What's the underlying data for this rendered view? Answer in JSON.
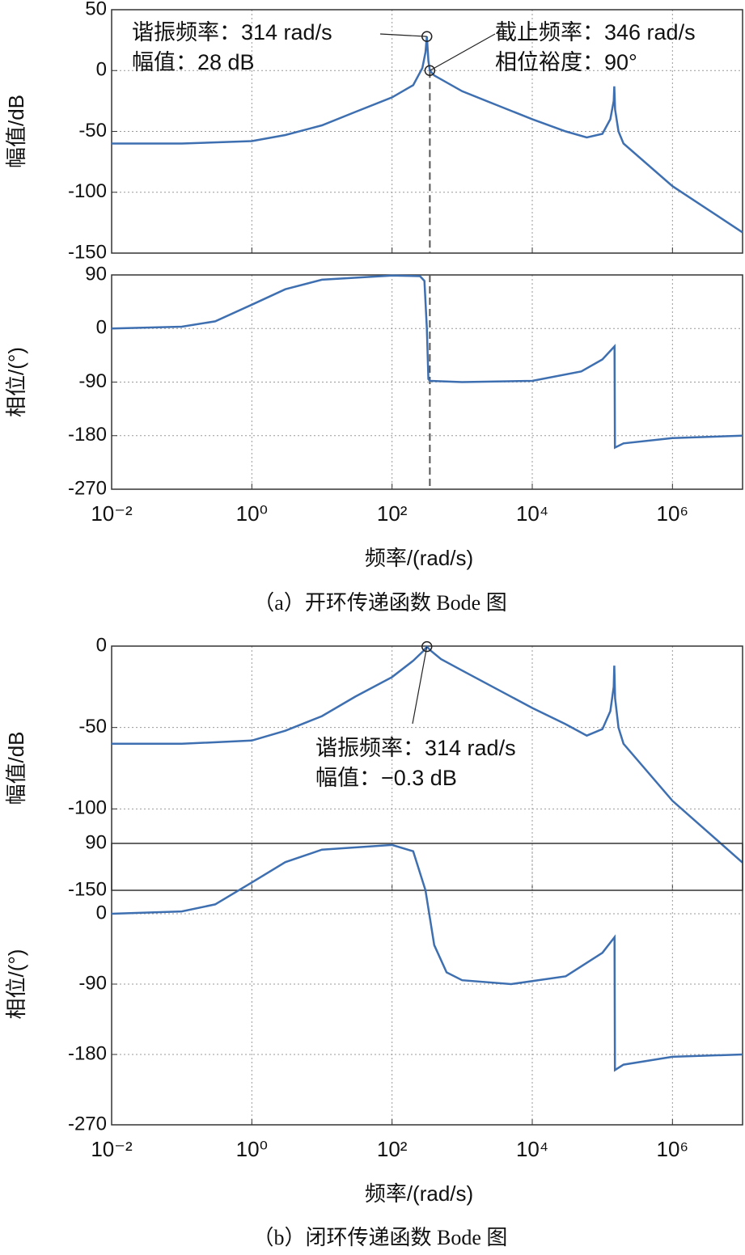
{
  "chart_data": [
    {
      "type": "line",
      "ylabel": "幅值/dB",
      "xscale": "log",
      "grid": true,
      "color": "#3e6fb0",
      "xlim": [
        0.01,
        10000000
      ],
      "ylim": [
        -150,
        50
      ],
      "yticks": [
        -150,
        -100,
        -50,
        0,
        50
      ],
      "xticks": [
        {
          "value": 0.01,
          "label": "10⁻²"
        },
        {
          "value": 1,
          "label": "10⁰"
        },
        {
          "value": 100,
          "label": "10²"
        },
        {
          "value": 10000,
          "label": "10⁴"
        },
        {
          "value": 1000000,
          "label": "10⁶"
        }
      ],
      "x": [
        0.01,
        0.1,
        1,
        3,
        10,
        30,
        100,
        200,
        270,
        300,
        314,
        330,
        346,
        400,
        1000,
        3000,
        10000,
        30000,
        60000,
        100000,
        130000,
        145000,
        148000,
        152000,
        170000,
        200000,
        1000000,
        10000000
      ],
      "values": [
        -60,
        -60,
        -58,
        -53,
        -45,
        -34,
        -22,
        -12,
        2,
        15,
        28,
        8,
        0,
        -4,
        -17,
        -28,
        -40,
        -50,
        -55,
        -52,
        -40,
        -25,
        -13,
        -32,
        -50,
        -60,
        -95,
        -133
      ],
      "vline": 346,
      "annotations": [
        {
          "lines": [
            "谐振频率：314 rad/s",
            "幅值：28 dB"
          ],
          "x": 314,
          "y": 28
        },
        {
          "lines": [
            "截止频率：346 rad/s",
            "相位裕度：90°"
          ],
          "x": 346,
          "y": 0
        }
      ]
    },
    {
      "type": "line",
      "ylabel": "相位/(°)",
      "xlabel": "频率/(rad/s)",
      "caption": "（a）开环传递函数 Bode 图",
      "xscale": "log",
      "grid": true,
      "color": "#3e6fb0",
      "xlim": [
        0.01,
        10000000
      ],
      "ylim": [
        -270,
        90
      ],
      "yticks": [
        -270,
        -180,
        -90,
        0,
        90
      ],
      "xticks": [
        {
          "value": 0.01,
          "label": "10⁻²"
        },
        {
          "value": 1,
          "label": "10⁰"
        },
        {
          "value": 100,
          "label": "10²"
        },
        {
          "value": 10000,
          "label": "10⁴"
        },
        {
          "value": 1000000,
          "label": "10⁶"
        }
      ],
      "x": [
        0.01,
        0.1,
        0.3,
        1,
        3,
        10,
        100,
        250,
        290,
        314,
        330,
        346,
        1000,
        10000,
        50000,
        100000,
        149000,
        151000,
        200000,
        1000000,
        10000000
      ],
      "values": [
        0,
        3,
        12,
        40,
        66,
        82,
        89,
        88,
        80,
        0,
        -85,
        -88,
        -90,
        -88,
        -72,
        -52,
        -30,
        -200,
        -193,
        -184,
        -180
      ],
      "vline": 346
    },
    {
      "type": "line",
      "ylabel": "幅值/dB",
      "xscale": "log",
      "grid": true,
      "color": "#3e6fb0",
      "xlim": [
        0.01,
        10000000
      ],
      "ylim": [
        -150,
        0
      ],
      "yticks": [
        -150,
        -100,
        -50,
        0
      ],
      "xticks": [
        {
          "value": 0.01,
          "label": "10⁻²"
        },
        {
          "value": 1,
          "label": "10⁰"
        },
        {
          "value": 100,
          "label": "10²"
        },
        {
          "value": 10000,
          "label": "10⁴"
        },
        {
          "value": 1000000,
          "label": "10⁶"
        }
      ],
      "x": [
        0.01,
        0.1,
        1,
        3,
        10,
        30,
        100,
        200,
        280,
        314,
        360,
        500,
        1000,
        3000,
        10000,
        30000,
        60000,
        100000,
        130000,
        145000,
        148000,
        152000,
        170000,
        200000,
        1000000,
        10000000
      ],
      "values": [
        -60,
        -60,
        -58,
        -52,
        -43,
        -31,
        -19,
        -9,
        -3,
        -0.3,
        -3,
        -8,
        -15,
        -26,
        -38,
        -48,
        -55,
        -51,
        -40,
        -25,
        -12,
        -32,
        -50,
        -60,
        -95,
        -133
      ],
      "annotations": [
        {
          "lines": [
            "谐振频率：314 rad/s",
            "幅值：−0.3 dB"
          ],
          "x": 314,
          "y": -0.3
        }
      ]
    },
    {
      "type": "line",
      "ylabel": "相位/(°)",
      "xlabel": "频率/(rad/s)",
      "caption": "（b）闭环传递函数 Bode 图",
      "xscale": "log",
      "grid": true,
      "color": "#3e6fb0",
      "xlim": [
        0.01,
        10000000
      ],
      "ylim": [
        -270,
        90
      ],
      "yticks": [
        -270,
        -180,
        -90,
        0,
        90
      ],
      "xticks": [
        {
          "value": 0.01,
          "label": "10⁻²"
        },
        {
          "value": 1,
          "label": "10⁰"
        },
        {
          "value": 100,
          "label": "10²"
        },
        {
          "value": 10000,
          "label": "10⁴"
        },
        {
          "value": 1000000,
          "label": "10⁶"
        }
      ],
      "x": [
        0.01,
        0.1,
        0.3,
        1,
        3,
        10,
        100,
        200,
        300,
        400,
        600,
        1000,
        5000,
        30000,
        100000,
        149000,
        151000,
        200000,
        1000000,
        10000000
      ],
      "values": [
        0,
        3,
        12,
        40,
        66,
        82,
        88,
        80,
        30,
        -40,
        -75,
        -85,
        -90,
        -80,
        -50,
        -30,
        -200,
        -193,
        -183,
        -180
      ]
    }
  ]
}
